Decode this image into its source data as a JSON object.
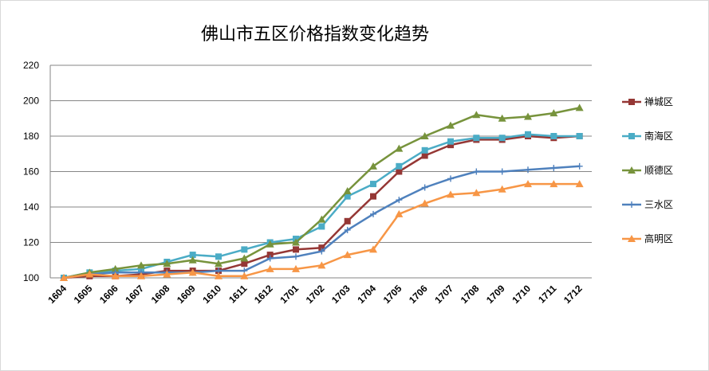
{
  "chart_data": {
    "type": "line",
    "title": "佛山市五区价格指数变化趋势",
    "xlabel": "",
    "ylabel": "",
    "categories": [
      "1604",
      "1605",
      "1606",
      "1607",
      "1608",
      "1609",
      "1610",
      "1611",
      "1612",
      "1701",
      "1702",
      "1703",
      "1704",
      "1705",
      "1706",
      "1707",
      "1708",
      "1709",
      "1710",
      "1711",
      "1712"
    ],
    "ylim": [
      100,
      220
    ],
    "yticks": [
      100,
      120,
      140,
      160,
      180,
      200,
      220
    ],
    "grid": true,
    "legend_position": "right",
    "series": [
      {
        "name": "禅城区",
        "color": "#953735",
        "marker": "square",
        "values": [
          100,
          101,
          101,
          102,
          104,
          104,
          104,
          108,
          113,
          116,
          117,
          132,
          146,
          160,
          169,
          175,
          178,
          178,
          180,
          179,
          180
        ]
      },
      {
        "name": "南海区",
        "color": "#4bacc6",
        "marker": "square",
        "values": [
          100,
          103,
          104,
          105,
          109,
          113,
          112,
          116,
          120,
          122,
          129,
          146,
          153,
          163,
          172,
          177,
          179,
          179,
          181,
          180,
          180
        ]
      },
      {
        "name": "顺德区",
        "color": "#77933c",
        "marker": "triangle",
        "values": [
          100,
          103,
          105,
          107,
          108,
          110,
          108,
          111,
          119,
          120,
          133,
          149,
          163,
          173,
          180,
          186,
          192,
          190,
          191,
          193,
          196
        ]
      },
      {
        "name": "三水区",
        "color": "#4f81bd",
        "marker": "plus",
        "values": [
          100,
          102,
          103,
          103,
          103,
          103,
          104,
          104,
          111,
          112,
          115,
          127,
          136,
          144,
          151,
          156,
          160,
          160,
          161,
          162,
          163
        ]
      },
      {
        "name": "高明区",
        "color": "#f79646",
        "marker": "triangle",
        "values": [
          100,
          102,
          101,
          101,
          102,
          103,
          101,
          101,
          105,
          105,
          107,
          113,
          116,
          136,
          142,
          147,
          148,
          150,
          153,
          153,
          153
        ]
      }
    ]
  }
}
